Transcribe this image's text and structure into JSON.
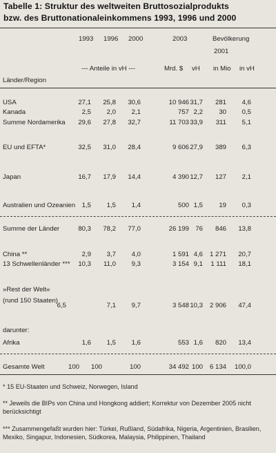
{
  "title_line1": "Tabelle 1: Struktur des weltweiten Bruttosozialprodukts",
  "title_line2": "bzw. des Bruttonationaleinkommens 1993, 1996 und 2000",
  "header": {
    "y1993": "1993",
    "y1996": "1996",
    "y2000": "2000",
    "y2003": "2003",
    "pop_label": "Bevölkerung",
    "pop_year": "2001",
    "anteile": "--- Anteile in vH ---",
    "mrd": "Mrd. $",
    "vh": "vH",
    "in_mio": "in Mio",
    "in_vh": "in vH",
    "region": "Länder/Region"
  },
  "rows": [
    {
      "label": "USA",
      "c1993": "27,1",
      "c1996": "25,8",
      "c2000": "30,6",
      "mrd": "10 946",
      "vh": "31,7",
      "mio": "281",
      "pvh": "4,6"
    },
    {
      "label": "Kanada",
      "c1993": "2,5",
      "c1996": "2,0",
      "c2000": "2,1",
      "mrd": "757",
      "vh": "2,2",
      "mio": "30",
      "pvh": "0,5"
    },
    {
      "label": "Summe Nordamerika",
      "c1993": "29,6",
      "c1996": "27,8",
      "c2000": "32,7",
      "mrd": "11 703",
      "vh": "33,9",
      "mio": "311",
      "pvh": "5,1"
    },
    {
      "label": "EU und EFTA*",
      "c1993": "32,5",
      "c1996": "31,0",
      "c2000": "28,4",
      "mrd": "9 606",
      "vh": "27,9",
      "mio": "389",
      "pvh": "6,3"
    },
    {
      "label": "Japan",
      "c1993": "16,7",
      "c1996": "17,9",
      "c2000": "14,4",
      "mrd": "4 390",
      "vh": "12,7",
      "mio": "127",
      "pvh": "2,1"
    },
    {
      "label": "Australien und Ozeanien",
      "c1993": "1,5",
      "c1996": "1,5",
      "c2000": "1,4",
      "mrd": "500",
      "vh": "1,5",
      "mio": "19",
      "pvh": "0,3"
    },
    {
      "label": "Summe der Länder",
      "c1993": "80,3",
      "c1996": "78,2",
      "c2000": "77,0",
      "mrd": "26 199",
      "vh": "76",
      "mio": "846",
      "pvh": "13,8"
    },
    {
      "label": "China **",
      "c1993": "2,9",
      "c1996": "3,7",
      "c2000": "4,0",
      "mrd": "1 591",
      "vh": "4,6",
      "mio": "1 271",
      "pvh": "20,7"
    },
    {
      "label": "13 Schwellenländer ***",
      "c1993": "10,3",
      "c1996": "11,0",
      "c2000": "9,3",
      "mrd": "3 154",
      "vh": "9,1",
      "mio": "1 111",
      "pvh": "18,1"
    },
    {
      "label": "»Rest der Welt«",
      "c1993": "",
      "c1996": "",
      "c2000": "",
      "mrd": "",
      "vh": "",
      "mio": "",
      "pvh": ""
    },
    {
      "label": "(rund 150 Staaten)",
      "c1993": "6,5",
      "c1996": "7,1",
      "c2000": "9,7",
      "mrd": "3 548",
      "vh": "10,3",
      "mio": "2 906",
      "pvh": "47,4"
    },
    {
      "label": "darunter:",
      "c1993": "",
      "c1996": "",
      "c2000": "",
      "mrd": "",
      "vh": "",
      "mio": "",
      "pvh": ""
    },
    {
      "label": "Afrika",
      "c1993": "1,6",
      "c1996": "1,5",
      "c2000": "1,6",
      "mrd": "553",
      "vh": "1,6",
      "mio": "820",
      "pvh": "13,4"
    },
    {
      "label": "Gesamte Welt",
      "c1993": "100",
      "c1996": "100",
      "c2000": "100",
      "mrd": "34 492",
      "vh": "100",
      "mio": "6 134",
      "pvh": "100,0"
    }
  ],
  "footnotes": {
    "f1": "* 15 EU-Staaten und Schweiz, Norwegen, Island",
    "f2": "** Jeweils die BIPs von China und Hongkong addiert; Korrektur von Dezember 2005 nicht berücksichtigt",
    "f3": "*** Zusammengefaßt wurden hier: Türkei, Rußland, Südafrika, Nigeria, Argentinien, Brasilien, Mexiko, Singapur, Indonesien, Südkorea, Malaysia, Philippinen, Thailand"
  }
}
